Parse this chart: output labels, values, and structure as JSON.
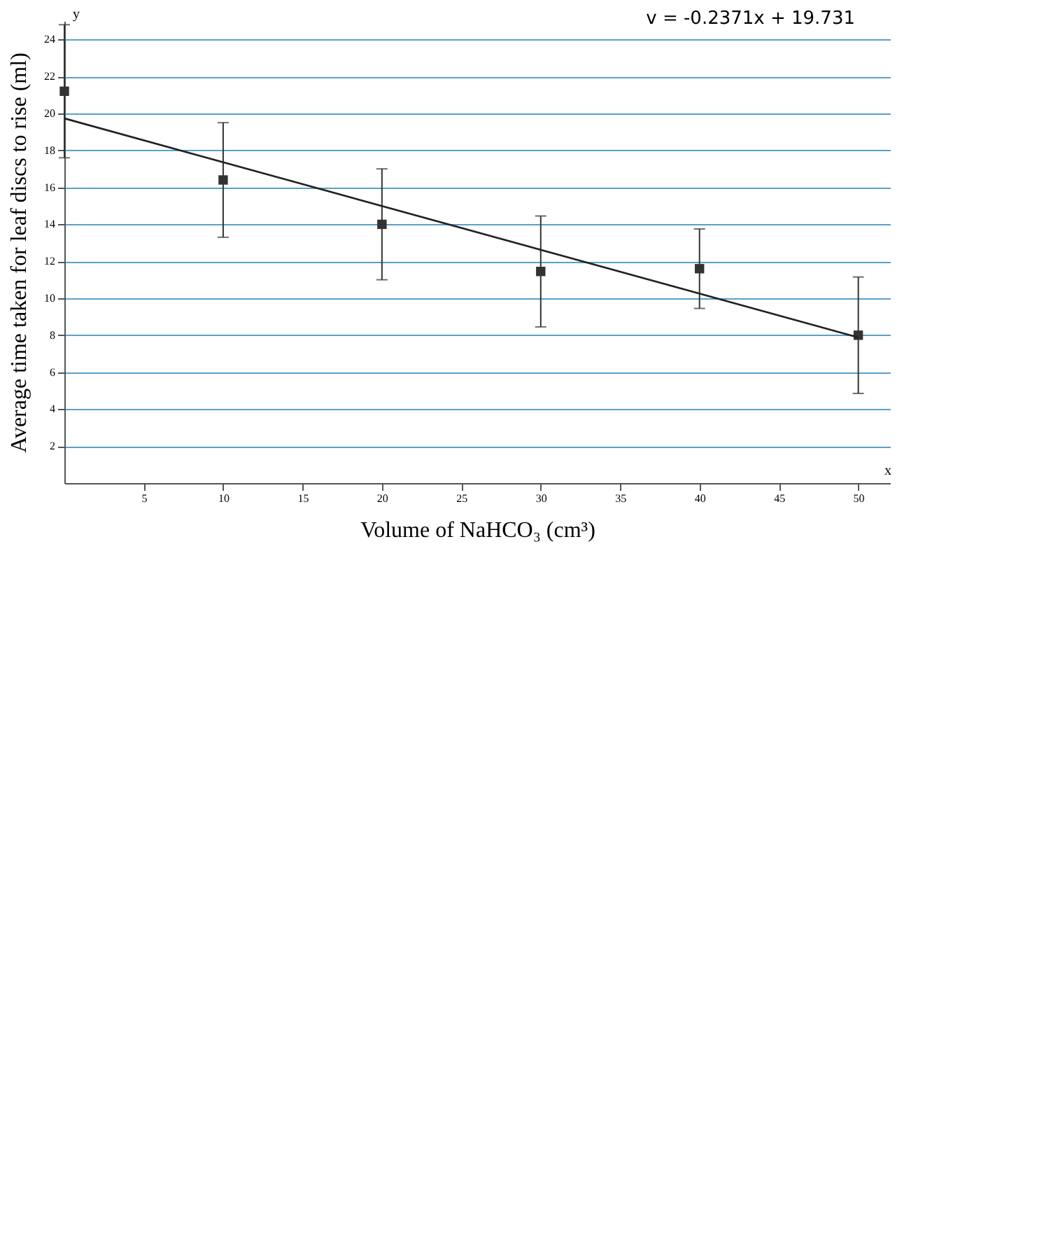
{
  "chart_data": {
    "type": "scatter",
    "xlabel": "Volume of NaHCO₃ (cm³)",
    "ylabel": "Average time taken for leaf discs to rise (ml)",
    "x": [
      0,
      10,
      20,
      30,
      40,
      50
    ],
    "series": [
      {
        "color": "#333333",
        "values": [
          21.2,
          16.4,
          14.0,
          11.45,
          11.6,
          8.0
        ],
        "errors": [
          3.6,
          3.1,
          3.0,
          3.0,
          2.15,
          3.15
        ],
        "marker": "square"
      },
      {
        "type": "line",
        "color": "#222222",
        "x": [
          0,
          50
        ],
        "values": [
          19.73,
          7.88
        ]
      }
    ],
    "xlim": [
      0,
      52
    ],
    "xticks": [
      5,
      10,
      15,
      20,
      25,
      30,
      35,
      40,
      45,
      50
    ],
    "ylim": [
      0,
      25
    ],
    "yticks": [
      2,
      4,
      6,
      8,
      10,
      12,
      14,
      16,
      18,
      20,
      22,
      24
    ],
    "grid": "y",
    "annotations": [
      "v = -0.2371x + 19.731",
      "y",
      "x"
    ]
  }
}
